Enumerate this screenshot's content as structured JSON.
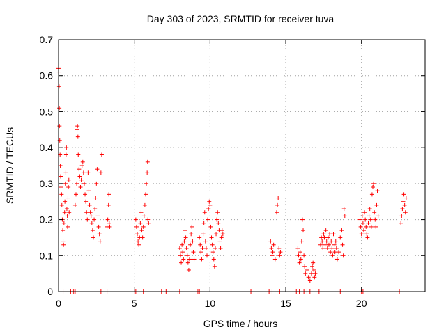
{
  "chart_data": {
    "type": "scatter",
    "title": "Day 303 of 2023, SRMTID for receiver tuva",
    "xlabel": "GPS time / hours",
    "ylabel": "SRMTID / TECUs",
    "xlim": [
      0,
      24.2
    ],
    "ylim": [
      0,
      0.7
    ],
    "xticks": [
      0,
      5,
      10,
      15,
      20
    ],
    "yticks": [
      0,
      0.1,
      0.2,
      0.3,
      0.4,
      0.5,
      0.6,
      0.7
    ],
    "grid": true,
    "marker": "+",
    "color": "#ff0000",
    "series": [
      {
        "name": "SRMTID",
        "points": [
          [
            0.0,
            0.62
          ],
          [
            0.02,
            0.61
          ],
          [
            0.04,
            0.57
          ],
          [
            0.05,
            0.51
          ],
          [
            0.06,
            0.46
          ],
          [
            0.08,
            0.42
          ],
          [
            0.1,
            0.38
          ],
          [
            0.12,
            0.35
          ],
          [
            0.14,
            0.32
          ],
          [
            0.16,
            0.29
          ],
          [
            0.2,
            0.27
          ],
          [
            0.22,
            0.24
          ],
          [
            0.25,
            0.2
          ],
          [
            0.28,
            0.17
          ],
          [
            0.3,
            0.14
          ],
          [
            0.33,
            0.13
          ],
          [
            0.36,
            0.19
          ],
          [
            0.4,
            0.22
          ],
          [
            0.42,
            0.25
          ],
          [
            0.45,
            0.3
          ],
          [
            0.48,
            0.33
          ],
          [
            0.5,
            0.38
          ],
          [
            0.52,
            0.4
          ],
          [
            0.55,
            0.23
          ],
          [
            0.58,
            0.21
          ],
          [
            0.6,
            0.18
          ],
          [
            0.62,
            0.26
          ],
          [
            0.65,
            0.29
          ],
          [
            0.68,
            0.31
          ],
          [
            0.7,
            0.22
          ],
          [
            1.1,
            0.24
          ],
          [
            1.15,
            0.27
          ],
          [
            1.2,
            0.3
          ],
          [
            1.22,
            0.45
          ],
          [
            1.25,
            0.46
          ],
          [
            1.28,
            0.43
          ],
          [
            1.3,
            0.38
          ],
          [
            1.35,
            0.34
          ],
          [
            1.4,
            0.32
          ],
          [
            1.45,
            0.29
          ],
          [
            1.5,
            0.31
          ],
          [
            1.55,
            0.35
          ],
          [
            1.6,
            0.36
          ],
          [
            1.65,
            0.33
          ],
          [
            1.7,
            0.3
          ],
          [
            1.75,
            0.27
          ],
          [
            1.8,
            0.25
          ],
          [
            1.85,
            0.22
          ],
          [
            1.9,
            0.2
          ],
          [
            1.95,
            0.33
          ],
          [
            2.0,
            0.28
          ],
          [
            2.05,
            0.24
          ],
          [
            2.1,
            0.22
          ],
          [
            2.15,
            0.21
          ],
          [
            2.2,
            0.19
          ],
          [
            2.25,
            0.17
          ],
          [
            2.3,
            0.15
          ],
          [
            2.35,
            0.2
          ],
          [
            2.4,
            0.23
          ],
          [
            2.45,
            0.26
          ],
          [
            2.5,
            0.3
          ],
          [
            2.55,
            0.34
          ],
          [
            2.6,
            0.21
          ],
          [
            2.65,
            0.18
          ],
          [
            2.7,
            0.16
          ],
          [
            2.75,
            0.14
          ],
          [
            2.8,
            0.33
          ],
          [
            2.85,
            0.38
          ],
          [
            3.2,
            0.18
          ],
          [
            3.25,
            0.2
          ],
          [
            3.3,
            0.24
          ],
          [
            3.32,
            0.27
          ],
          [
            3.35,
            0.19
          ],
          [
            3.38,
            0.18
          ],
          [
            5.1,
            0.2
          ],
          [
            5.15,
            0.18
          ],
          [
            5.2,
            0.16
          ],
          [
            5.25,
            0.14
          ],
          [
            5.3,
            0.13
          ],
          [
            5.35,
            0.15
          ],
          [
            5.4,
            0.19
          ],
          [
            5.45,
            0.22
          ],
          [
            5.5,
            0.17
          ],
          [
            5.55,
            0.15
          ],
          [
            5.6,
            0.18
          ],
          [
            5.65,
            0.21
          ],
          [
            5.7,
            0.24
          ],
          [
            5.75,
            0.27
          ],
          [
            5.8,
            0.3
          ],
          [
            5.85,
            0.33
          ],
          [
            5.88,
            0.36
          ],
          [
            5.9,
            0.2
          ],
          [
            5.95,
            0.19
          ],
          [
            8.0,
            0.12
          ],
          [
            8.05,
            0.1
          ],
          [
            8.1,
            0.08
          ],
          [
            8.15,
            0.13
          ],
          [
            8.2,
            0.11
          ],
          [
            8.25,
            0.09
          ],
          [
            8.3,
            0.14
          ],
          [
            8.35,
            0.17
          ],
          [
            8.4,
            0.15
          ],
          [
            8.45,
            0.12
          ],
          [
            8.5,
            0.1
          ],
          [
            8.55,
            0.08
          ],
          [
            8.6,
            0.06
          ],
          [
            8.65,
            0.09
          ],
          [
            8.7,
            0.13
          ],
          [
            8.75,
            0.16
          ],
          [
            8.8,
            0.18
          ],
          [
            8.85,
            0.14
          ],
          [
            8.9,
            0.11
          ],
          [
            8.95,
            0.09
          ],
          [
            9.3,
            0.15
          ],
          [
            9.35,
            0.13
          ],
          [
            9.4,
            0.11
          ],
          [
            9.45,
            0.09
          ],
          [
            9.5,
            0.12
          ],
          [
            9.55,
            0.16
          ],
          [
            9.6,
            0.19
          ],
          [
            9.65,
            0.22
          ],
          [
            9.7,
            0.14
          ],
          [
            9.75,
            0.12
          ],
          [
            9.8,
            0.1
          ],
          [
            9.85,
            0.2
          ],
          [
            9.9,
            0.23
          ],
          [
            9.95,
            0.25
          ],
          [
            10.0,
            0.24
          ],
          [
            10.05,
            0.18
          ],
          [
            10.1,
            0.15
          ],
          [
            10.15,
            0.13
          ],
          [
            10.2,
            0.11
          ],
          [
            10.25,
            0.09
          ],
          [
            10.3,
            0.07
          ],
          [
            10.35,
            0.12
          ],
          [
            10.4,
            0.16
          ],
          [
            10.45,
            0.2
          ],
          [
            10.5,
            0.22
          ],
          [
            10.55,
            0.19
          ],
          [
            10.6,
            0.17
          ],
          [
            10.65,
            0.14
          ],
          [
            10.7,
            0.12
          ],
          [
            10.75,
            0.15
          ],
          [
            10.8,
            0.17
          ],
          [
            10.85,
            0.16
          ],
          [
            14.0,
            0.14
          ],
          [
            14.05,
            0.12
          ],
          [
            14.1,
            0.1
          ],
          [
            14.15,
            0.11
          ],
          [
            14.2,
            0.13
          ],
          [
            14.3,
            0.09
          ],
          [
            14.4,
            0.22
          ],
          [
            14.45,
            0.24
          ],
          [
            14.5,
            0.26
          ],
          [
            14.55,
            0.12
          ],
          [
            14.6,
            0.1
          ],
          [
            14.65,
            0.11
          ],
          [
            15.8,
            0.12
          ],
          [
            15.85,
            0.1
          ],
          [
            15.9,
            0.08
          ],
          [
            15.95,
            0.11
          ],
          [
            16.0,
            0.09
          ],
          [
            16.05,
            0.14
          ],
          [
            16.1,
            0.2
          ],
          [
            16.15,
            0.17
          ],
          [
            16.2,
            0.1
          ],
          [
            16.25,
            0.07
          ],
          [
            16.3,
            0.05
          ],
          [
            16.4,
            0.06
          ],
          [
            16.5,
            0.04
          ],
          [
            16.6,
            0.03
          ],
          [
            16.7,
            0.05
          ],
          [
            16.75,
            0.07
          ],
          [
            16.8,
            0.08
          ],
          [
            16.85,
            0.06
          ],
          [
            16.9,
            0.04
          ],
          [
            16.95,
            0.05
          ],
          [
            17.3,
            0.13
          ],
          [
            17.35,
            0.15
          ],
          [
            17.4,
            0.14
          ],
          [
            17.45,
            0.12
          ],
          [
            17.5,
            0.16
          ],
          [
            17.55,
            0.15
          ],
          [
            17.6,
            0.13
          ],
          [
            17.65,
            0.17
          ],
          [
            17.7,
            0.14
          ],
          [
            17.75,
            0.12
          ],
          [
            17.8,
            0.15
          ],
          [
            17.85,
            0.13
          ],
          [
            17.9,
            0.16
          ],
          [
            17.95,
            0.11
          ],
          [
            18.0,
            0.14
          ],
          [
            18.05,
            0.12
          ],
          [
            18.1,
            0.1
          ],
          [
            18.15,
            0.16
          ],
          [
            18.2,
            0.13
          ],
          [
            18.25,
            0.11
          ],
          [
            18.3,
            0.14
          ],
          [
            18.35,
            0.12
          ],
          [
            18.4,
            0.09
          ],
          [
            18.5,
            0.11
          ],
          [
            18.6,
            0.15
          ],
          [
            18.7,
            0.17
          ],
          [
            18.75,
            0.13
          ],
          [
            18.8,
            0.1
          ],
          [
            18.85,
            0.23
          ],
          [
            18.9,
            0.21
          ],
          [
            19.9,
            0.2
          ],
          [
            19.95,
            0.18
          ],
          [
            20.0,
            0.16
          ],
          [
            20.05,
            0.21
          ],
          [
            20.1,
            0.19
          ],
          [
            20.15,
            0.17
          ],
          [
            20.2,
            0.22
          ],
          [
            20.25,
            0.2
          ],
          [
            20.3,
            0.18
          ],
          [
            20.35,
            0.16
          ],
          [
            20.4,
            0.15
          ],
          [
            20.45,
            0.19
          ],
          [
            20.5,
            0.21
          ],
          [
            20.55,
            0.23
          ],
          [
            20.6,
            0.2
          ],
          [
            20.65,
            0.18
          ],
          [
            20.7,
            0.27
          ],
          [
            20.75,
            0.29
          ],
          [
            20.8,
            0.3
          ],
          [
            20.85,
            0.22
          ],
          [
            20.9,
            0.2
          ],
          [
            20.95,
            0.18
          ],
          [
            21.0,
            0.24
          ],
          [
            21.05,
            0.28
          ],
          [
            21.1,
            0.21
          ],
          [
            22.6,
            0.19
          ],
          [
            22.65,
            0.21
          ],
          [
            22.7,
            0.23
          ],
          [
            22.75,
            0.25
          ],
          [
            22.8,
            0.27
          ],
          [
            22.85,
            0.24
          ],
          [
            22.9,
            0.22
          ],
          [
            22.95,
            0.26
          ]
        ],
        "zero_points": [
          0.3,
          0.8,
          0.9,
          1.0,
          1.1,
          2.8,
          3.2,
          5.0,
          5.1,
          5.6,
          6.8,
          7.1,
          8.0,
          9.2,
          9.3,
          12.7,
          13.9,
          14.1,
          14.6,
          15.7,
          15.9,
          16.2,
          16.4,
          16.6,
          17.2,
          18.6,
          19.9,
          20.0,
          20.1,
          22.5
        ]
      }
    ]
  }
}
